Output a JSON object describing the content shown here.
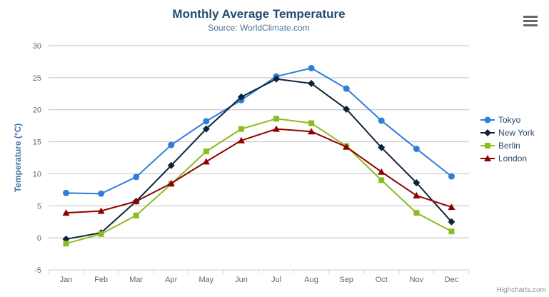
{
  "chart_data": {
    "type": "line",
    "title": "Monthly Average Temperature",
    "subtitle": "Source: WorldClimate.com",
    "xlabel": "",
    "ylabel": "Temperature (°C)",
    "categories": [
      "Jan",
      "Feb",
      "Mar",
      "Apr",
      "May",
      "Jun",
      "Jul",
      "Aug",
      "Sep",
      "Oct",
      "Nov",
      "Dec"
    ],
    "ylim": [
      -5,
      30
    ],
    "yticks": [
      -5,
      0,
      5,
      10,
      15,
      20,
      25,
      30
    ],
    "grid": true,
    "legend_position": "right",
    "series": [
      {
        "name": "Tokyo",
        "color": "#2f7ed8",
        "marker": "circle",
        "values": [
          7.0,
          6.9,
          9.5,
          14.5,
          18.2,
          21.5,
          25.2,
          26.5,
          23.3,
          18.3,
          13.9,
          9.6
        ]
      },
      {
        "name": "New York",
        "color": "#0d233a",
        "marker": "diamond",
        "values": [
          -0.2,
          0.8,
          5.7,
          11.3,
          17.0,
          22.0,
          24.8,
          24.1,
          20.1,
          14.1,
          8.6,
          2.5
        ]
      },
      {
        "name": "Berlin",
        "color": "#8bbc21",
        "marker": "square",
        "values": [
          -0.9,
          0.6,
          3.5,
          8.4,
          13.5,
          17.0,
          18.6,
          17.9,
          14.3,
          9.0,
          3.9,
          1.0
        ]
      },
      {
        "name": "London",
        "color": "#910000",
        "marker": "triangle",
        "values": [
          3.9,
          4.2,
          5.7,
          8.5,
          11.9,
          15.2,
          17.0,
          16.6,
          14.2,
          10.3,
          6.6,
          4.8
        ]
      }
    ],
    "colors": {
      "grid_line": "#C0C0C0",
      "axis_line": "#C0D0E0",
      "tick_label": "#666666",
      "title": "#274b6d",
      "subtitle": "#4d759e",
      "y_axis_title": "#4572a7",
      "legend_text": "#274b6d",
      "credits_text": "#909090"
    }
  },
  "menu": {
    "icon": "hamburger-icon"
  },
  "credits": {
    "label": "Highcharts.com"
  }
}
